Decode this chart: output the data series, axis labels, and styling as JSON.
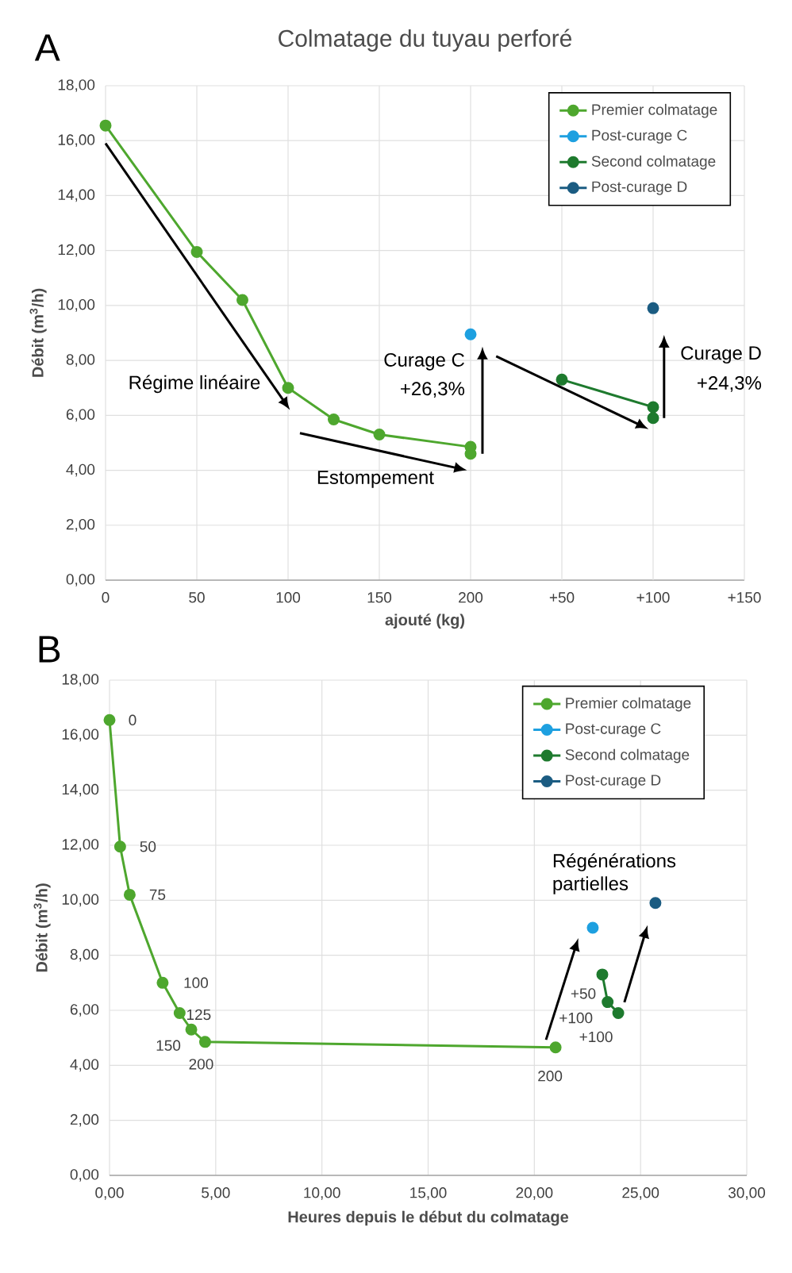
{
  "chart_data": [
    {
      "type": "line",
      "title": "Colmatage du tuyau perforé",
      "xlabel": "ajouté (kg)",
      "ylabel": "Débit (m$^{3}$/h)",
      "xlim": [
        0,
        350
      ],
      "xticks": [
        0,
        50,
        100,
        150,
        200
      ],
      "x2lim": [
        -200,
        150
      ],
      "x2ticks": [
        {
          "value": 50,
          "label": "+50"
        },
        {
          "value": 100,
          "label": "+100"
        },
        {
          "value": 150,
          "label": "+150"
        }
      ],
      "ylim": [
        0,
        18
      ],
      "yticks": [
        {
          "value": 0,
          "label": "0,00"
        },
        {
          "value": 2,
          "label": "2,00"
        },
        {
          "value": 4,
          "label": "4,00"
        },
        {
          "value": 6,
          "label": "6,00"
        },
        {
          "value": 8,
          "label": "8,00"
        },
        {
          "value": 10,
          "label": "10,00"
        },
        {
          "value": 12,
          "label": "12,00"
        },
        {
          "value": 14,
          "label": "14,00"
        },
        {
          "value": 16,
          "label": "16,00"
        },
        {
          "value": 18,
          "label": "18,00"
        }
      ],
      "grid": true,
      "legend": "top right",
      "marker": "circle",
      "line_style": "solid",
      "series": [
        {
          "name": "Premier colmatage",
          "color": "#4ea72e",
          "x": [
            0,
            50,
            75,
            100,
            125,
            150,
            200,
            200
          ],
          "values": [
            16.55,
            11.95,
            10.2,
            7.0,
            5.85,
            5.3,
            4.85,
            4.6
          ]
        },
        {
          "name": "Post-curage C",
          "color": "#1ea0e0",
          "x": [
            200
          ],
          "values": [
            8.95
          ]
        },
        {
          "name": "Second colmatage",
          "color": "#1e7a2e",
          "axis": "x2",
          "x": [
            50,
            100,
            100
          ],
          "values": [
            7.3,
            6.3,
            5.9
          ]
        },
        {
          "name": "Post-curage D",
          "color": "#1b5c82",
          "axis": "x2",
          "x": [
            100
          ],
          "values": [
            9.9
          ]
        }
      ],
      "annotations": [
        "A",
        "Régime linéaire",
        "Estompement",
        "Curage C",
        "+26,3%",
        "Curage D",
        "+24,3%"
      ]
    },
    {
      "type": "line",
      "xlabel": "Heures depuis le début du colmatage",
      "ylabel": "Débit (m$^{3}$/h)",
      "xlim": [
        0,
        30
      ],
      "xticks": [
        {
          "value": 0,
          "label": "0,00"
        },
        {
          "value": 5,
          "label": "5,00"
        },
        {
          "value": 10,
          "label": "10,00"
        },
        {
          "value": 15,
          "label": "15,00"
        },
        {
          "value": 20,
          "label": "20,00"
        },
        {
          "value": 25,
          "label": "25,00"
        },
        {
          "value": 30,
          "label": "30,00"
        }
      ],
      "ylim": [
        0,
        18
      ],
      "yticks": [
        {
          "value": 0,
          "label": "0,00"
        },
        {
          "value": 2,
          "label": "2,00"
        },
        {
          "value": 4,
          "label": "4,00"
        },
        {
          "value": 6,
          "label": "6,00"
        },
        {
          "value": 8,
          "label": "8,00"
        },
        {
          "value": 10,
          "label": "10,00"
        },
        {
          "value": 12,
          "label": "12,00"
        },
        {
          "value": 14,
          "label": "14,00"
        },
        {
          "value": 16,
          "label": "16,00"
        },
        {
          "value": 18,
          "label": "18,00"
        }
      ],
      "grid": true,
      "legend": "top right",
      "marker": "circle",
      "line_style": "solid",
      "series": [
        {
          "name": "Premier colmatage",
          "color": "#4ea72e",
          "x": [
            0,
            0.5,
            0.95,
            2.5,
            3.3,
            3.85,
            4.5,
            21.0
          ],
          "values": [
            16.55,
            11.95,
            10.2,
            7.0,
            5.9,
            5.3,
            4.85,
            4.65
          ]
        },
        {
          "name": "Post-curage C",
          "color": "#1ea0e0",
          "x": [
            22.75
          ],
          "values": [
            9.0
          ]
        },
        {
          "name": "Second colmatage",
          "color": "#1e7a2e",
          "x": [
            23.2,
            23.45,
            23.95
          ],
          "values": [
            7.3,
            6.3,
            5.9
          ]
        },
        {
          "name": "Post-curage D",
          "color": "#1b5c82",
          "x": [
            25.7
          ],
          "values": [
            9.9
          ]
        }
      ],
      "annotations": [
        "B",
        "Régénérations partielles",
        {
          "text": "0",
          "x": 0,
          "y": 16.55
        },
        {
          "text": "50",
          "x": 0.5,
          "y": 11.95
        },
        {
          "text": "75",
          "x": 0.95,
          "y": 10.2
        },
        {
          "text": "100",
          "x": 2.5,
          "y": 7.0
        },
        {
          "text": "125",
          "x": 3.3,
          "y": 5.9
        },
        {
          "text": "150",
          "x": 3.85,
          "y": 5.3
        },
        {
          "text": "200",
          "x": 4.5,
          "y": 4.85
        },
        {
          "text": "200",
          "x": 21.0,
          "y": 4.65
        },
        {
          "text": "+50",
          "x": 23.2,
          "y": 7.3
        },
        {
          "text": "+100",
          "x": 23.45,
          "y": 6.3
        },
        {
          "text": "+100",
          "x": 23.95,
          "y": 5.9
        }
      ]
    }
  ]
}
